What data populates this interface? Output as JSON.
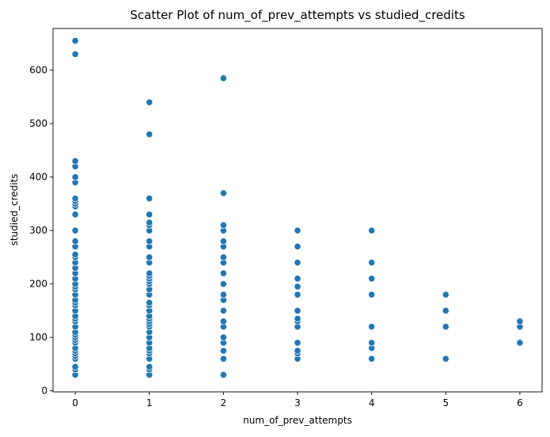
{
  "chart_data": {
    "type": "scatter",
    "title": "Scatter Plot of num_of_prev_attempts vs studied_credits",
    "xlabel": "num_of_prev_attempts",
    "ylabel": "studied_credits",
    "xlim": [
      -0.3,
      6.3
    ],
    "ylim": [
      -2,
      678
    ],
    "xticks": [
      0,
      1,
      2,
      3,
      4,
      5,
      6
    ],
    "yticks": [
      0,
      100,
      200,
      300,
      400,
      500,
      600
    ],
    "grid": false,
    "marker_color": "#1f77b4",
    "points": [
      {
        "x": 0,
        "y": 30
      },
      {
        "x": 0,
        "y": 40
      },
      {
        "x": 0,
        "y": 45
      },
      {
        "x": 0,
        "y": 60
      },
      {
        "x": 0,
        "y": 65
      },
      {
        "x": 0,
        "y": 70
      },
      {
        "x": 0,
        "y": 75
      },
      {
        "x": 0,
        "y": 80
      },
      {
        "x": 0,
        "y": 90
      },
      {
        "x": 0,
        "y": 95
      },
      {
        "x": 0,
        "y": 100
      },
      {
        "x": 0,
        "y": 105
      },
      {
        "x": 0,
        "y": 110
      },
      {
        "x": 0,
        "y": 120
      },
      {
        "x": 0,
        "y": 130
      },
      {
        "x": 0,
        "y": 135
      },
      {
        "x": 0,
        "y": 140
      },
      {
        "x": 0,
        "y": 150
      },
      {
        "x": 0,
        "y": 160
      },
      {
        "x": 0,
        "y": 165
      },
      {
        "x": 0,
        "y": 170
      },
      {
        "x": 0,
        "y": 180
      },
      {
        "x": 0,
        "y": 190
      },
      {
        "x": 0,
        "y": 195
      },
      {
        "x": 0,
        "y": 200
      },
      {
        "x": 0,
        "y": 210
      },
      {
        "x": 0,
        "y": 220
      },
      {
        "x": 0,
        "y": 230
      },
      {
        "x": 0,
        "y": 240
      },
      {
        "x": 0,
        "y": 250
      },
      {
        "x": 0,
        "y": 255
      },
      {
        "x": 0,
        "y": 270
      },
      {
        "x": 0,
        "y": 280
      },
      {
        "x": 0,
        "y": 300
      },
      {
        "x": 0,
        "y": 330
      },
      {
        "x": 0,
        "y": 345
      },
      {
        "x": 0,
        "y": 350
      },
      {
        "x": 0,
        "y": 355
      },
      {
        "x": 0,
        "y": 360
      },
      {
        "x": 0,
        "y": 390
      },
      {
        "x": 0,
        "y": 400
      },
      {
        "x": 0,
        "y": 420
      },
      {
        "x": 0,
        "y": 430
      },
      {
        "x": 0,
        "y": 630
      },
      {
        "x": 0,
        "y": 655
      },
      {
        "x": 1,
        "y": 30
      },
      {
        "x": 1,
        "y": 40
      },
      {
        "x": 1,
        "y": 45
      },
      {
        "x": 1,
        "y": 60
      },
      {
        "x": 1,
        "y": 70
      },
      {
        "x": 1,
        "y": 75
      },
      {
        "x": 1,
        "y": 80
      },
      {
        "x": 1,
        "y": 90
      },
      {
        "x": 1,
        "y": 100
      },
      {
        "x": 1,
        "y": 110
      },
      {
        "x": 1,
        "y": 120
      },
      {
        "x": 1,
        "y": 125
      },
      {
        "x": 1,
        "y": 130
      },
      {
        "x": 1,
        "y": 135
      },
      {
        "x": 1,
        "y": 140
      },
      {
        "x": 1,
        "y": 150
      },
      {
        "x": 1,
        "y": 160
      },
      {
        "x": 1,
        "y": 165
      },
      {
        "x": 1,
        "y": 180
      },
      {
        "x": 1,
        "y": 190
      },
      {
        "x": 1,
        "y": 200
      },
      {
        "x": 1,
        "y": 205
      },
      {
        "x": 1,
        "y": 210
      },
      {
        "x": 1,
        "y": 215
      },
      {
        "x": 1,
        "y": 220
      },
      {
        "x": 1,
        "y": 240
      },
      {
        "x": 1,
        "y": 250
      },
      {
        "x": 1,
        "y": 270
      },
      {
        "x": 1,
        "y": 280
      },
      {
        "x": 1,
        "y": 300
      },
      {
        "x": 1,
        "y": 310
      },
      {
        "x": 1,
        "y": 315
      },
      {
        "x": 1,
        "y": 330
      },
      {
        "x": 1,
        "y": 360
      },
      {
        "x": 1,
        "y": 480
      },
      {
        "x": 1,
        "y": 540
      },
      {
        "x": 2,
        "y": 30
      },
      {
        "x": 2,
        "y": 60
      },
      {
        "x": 2,
        "y": 75
      },
      {
        "x": 2,
        "y": 90
      },
      {
        "x": 2,
        "y": 100
      },
      {
        "x": 2,
        "y": 120
      },
      {
        "x": 2,
        "y": 130
      },
      {
        "x": 2,
        "y": 150
      },
      {
        "x": 2,
        "y": 170
      },
      {
        "x": 2,
        "y": 180
      },
      {
        "x": 2,
        "y": 200
      },
      {
        "x": 2,
        "y": 220
      },
      {
        "x": 2,
        "y": 240
      },
      {
        "x": 2,
        "y": 250
      },
      {
        "x": 2,
        "y": 270
      },
      {
        "x": 2,
        "y": 280
      },
      {
        "x": 2,
        "y": 300
      },
      {
        "x": 2,
        "y": 310
      },
      {
        "x": 2,
        "y": 370
      },
      {
        "x": 2,
        "y": 585
      },
      {
        "x": 3,
        "y": 60
      },
      {
        "x": 3,
        "y": 70
      },
      {
        "x": 3,
        "y": 75
      },
      {
        "x": 3,
        "y": 90
      },
      {
        "x": 3,
        "y": 120
      },
      {
        "x": 3,
        "y": 130
      },
      {
        "x": 3,
        "y": 135
      },
      {
        "x": 3,
        "y": 150
      },
      {
        "x": 3,
        "y": 180
      },
      {
        "x": 3,
        "y": 195
      },
      {
        "x": 3,
        "y": 210
      },
      {
        "x": 3,
        "y": 240
      },
      {
        "x": 3,
        "y": 270
      },
      {
        "x": 3,
        "y": 300
      },
      {
        "x": 4,
        "y": 60
      },
      {
        "x": 4,
        "y": 80
      },
      {
        "x": 4,
        "y": 90
      },
      {
        "x": 4,
        "y": 120
      },
      {
        "x": 4,
        "y": 180
      },
      {
        "x": 4,
        "y": 210
      },
      {
        "x": 4,
        "y": 240
      },
      {
        "x": 4,
        "y": 300
      },
      {
        "x": 5,
        "y": 60
      },
      {
        "x": 5,
        "y": 120
      },
      {
        "x": 5,
        "y": 150
      },
      {
        "x": 5,
        "y": 180
      },
      {
        "x": 6,
        "y": 90
      },
      {
        "x": 6,
        "y": 120
      },
      {
        "x": 6,
        "y": 130
      }
    ]
  }
}
